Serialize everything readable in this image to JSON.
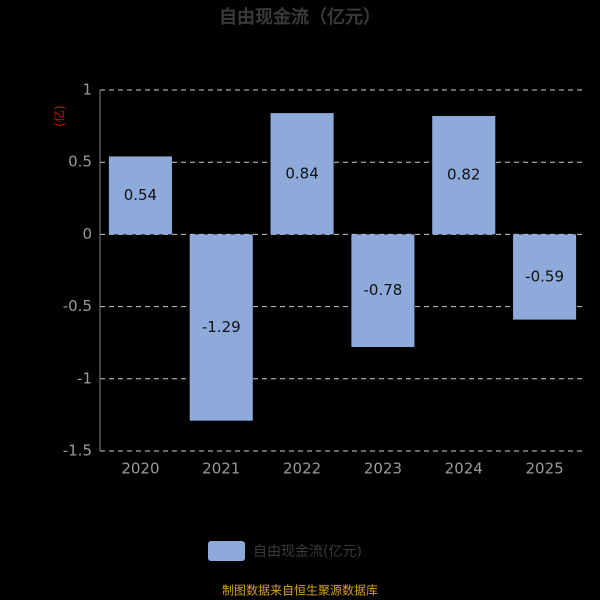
{
  "chart_data": {
    "type": "bar",
    "title": "自由现金流（亿元）",
    "y_label": "(亿)",
    "categories": [
      "2020",
      "2021",
      "2022",
      "2023",
      "2024",
      "2025"
    ],
    "series": [
      {
        "name": "自由现金流(亿元)",
        "color": "#8eaadb",
        "values": [
          0.54,
          -1.29,
          0.84,
          -0.78,
          0.82,
          -0.59
        ]
      }
    ],
    "ylim": [
      -1.5,
      1
    ],
    "yticks": [
      1,
      0.5,
      0,
      -0.5,
      -1,
      -1.5
    ],
    "grid": true
  },
  "footer": "制图数据来自恒生聚源数据库"
}
